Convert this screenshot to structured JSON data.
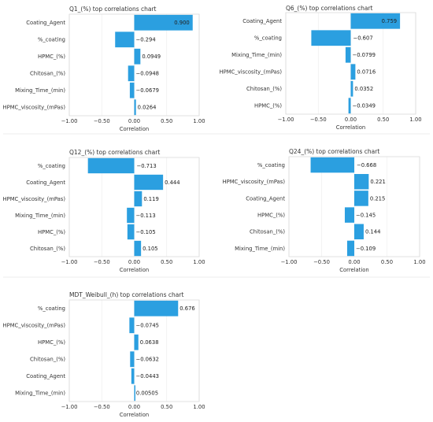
{
  "chart_data": [
    {
      "type": "bar",
      "orientation": "horizontal",
      "title": "Q1_(%) top correlations chart",
      "xlabel": "Correlation",
      "xlim": [
        -1.0,
        1.0
      ],
      "xticks": [
        "−1.00",
        "−0.50",
        "0.00",
        "0.50",
        "1.00"
      ],
      "grid": true,
      "color": "#2B9FE0",
      "categories": [
        "Coating_Agent",
        "%_coating",
        "HPMC_(%)",
        "Chitosan_(%)",
        "Mixing_Time_(min)",
        "HPMC_viscosity_(mPas)"
      ],
      "values": [
        0.9,
        -0.294,
        0.0949,
        -0.0948,
        -0.0679,
        0.0264
      ],
      "value_labels": [
        "0.900",
        "−0.294",
        "0.0949",
        "−0.0948",
        "−0.0679",
        "0.0264"
      ]
    },
    {
      "type": "bar",
      "orientation": "horizontal",
      "title": "Q6_(%) top correlations chart",
      "xlabel": "Correlation",
      "xlim": [
        -1.0,
        1.0
      ],
      "xticks": [
        "−1.00",
        "−0.50",
        "0.00",
        "0.50",
        "1.00"
      ],
      "grid": true,
      "color": "#2B9FE0",
      "categories": [
        "Coating_Agent",
        "%_coating",
        "Mixing_Time_(min)",
        "HPMC_viscosity_(mPas)",
        "Chitosan_(%)",
        "HPMC_(%)"
      ],
      "values": [
        0.759,
        -0.607,
        -0.0799,
        0.0716,
        0.0352,
        -0.0349
      ],
      "value_labels": [
        "0.759",
        "−0.607",
        "−0.0799",
        "0.0716",
        "0.0352",
        "−0.0349"
      ]
    },
    {
      "type": "bar",
      "orientation": "horizontal",
      "title": "Q12_(%) top correlations chart",
      "xlabel": "Correlation",
      "xlim": [
        -1.0,
        1.0
      ],
      "xticks": [
        "−1.00",
        "−0.50",
        "0.00",
        "0.50",
        "1.00"
      ],
      "grid": true,
      "color": "#2B9FE0",
      "categories": [
        "%_coating",
        "Coating_Agent",
        "HPMC_viscosity_(mPas)",
        "Mixing_Time_(min)",
        "HPMC_(%)",
        "Chitosan_(%)"
      ],
      "values": [
        -0.713,
        0.444,
        0.119,
        -0.113,
        -0.105,
        0.105
      ],
      "value_labels": [
        "−0.713",
        "0.444",
        "0.119",
        "−0.113",
        "−0.105",
        "0.105"
      ]
    },
    {
      "type": "bar",
      "orientation": "horizontal",
      "title": "Q24_(%) top correlations chart",
      "xlabel": "Correlation",
      "xlim": [
        -1.0,
        1.0
      ],
      "xticks": [
        "−1.00",
        "−0.50",
        "0.00",
        "0.50",
        "1.00"
      ],
      "grid": true,
      "color": "#2B9FE0",
      "categories": [
        "%_coating",
        "HPMC_viscosity_(mPas)",
        "Coating_Agent",
        "HPMC_(%)",
        "Chitosan_(%)",
        "Mixing_Time_(min)"
      ],
      "values": [
        -0.668,
        0.221,
        0.215,
        -0.145,
        0.144,
        -0.109
      ],
      "value_labels": [
        "−0.668",
        "0.221",
        "0.215",
        "−0.145",
        "0.144",
        "−0.109"
      ]
    },
    {
      "type": "bar",
      "orientation": "horizontal",
      "title": "MDT_Weibull_(h) top correlations chart",
      "xlabel": "Correlation",
      "xlim": [
        -1.0,
        1.0
      ],
      "xticks": [
        "−1.00",
        "−0.50",
        "0.00",
        "0.50",
        "1.00"
      ],
      "grid": true,
      "color": "#2B9FE0",
      "categories": [
        "%_coating",
        "HPMC_viscosity_(mPas)",
        "HPMC_(%)",
        "Chitosan_(%)",
        "Coating_Agent",
        "Mixing_Time_(min)"
      ],
      "values": [
        0.676,
        -0.0745,
        0.0638,
        -0.0632,
        -0.0443,
        0.00505
      ],
      "value_labels": [
        "0.676",
        "−0.0745",
        "0.0638",
        "−0.0632",
        "−0.0443",
        "0.00505"
      ]
    }
  ]
}
